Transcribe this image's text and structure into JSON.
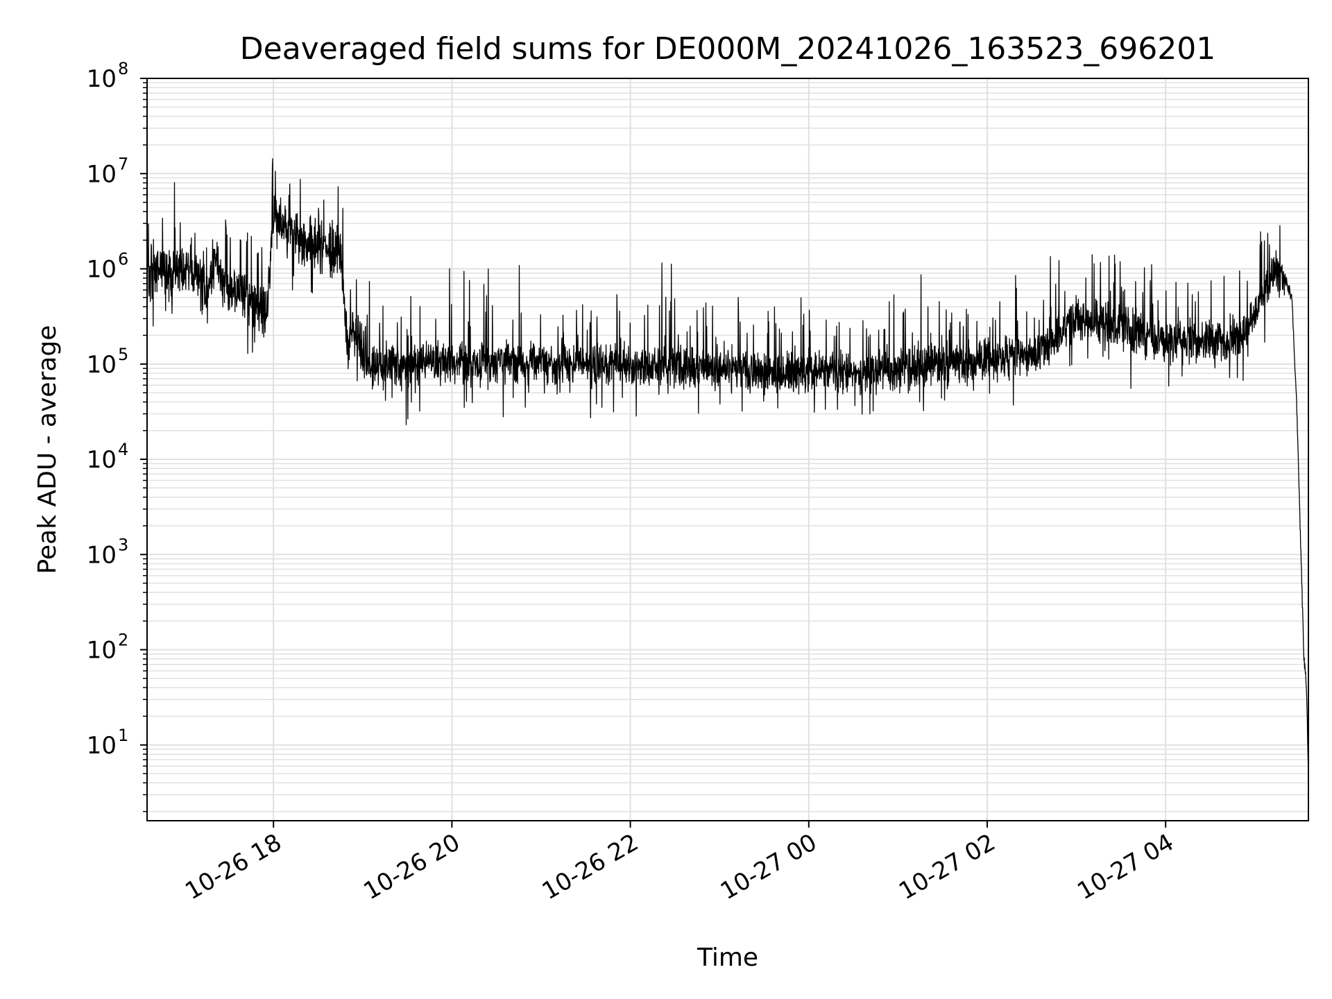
{
  "chart_data": {
    "type": "line",
    "title": "Deaveraged field sums for DE000M_20241026_163523_696201",
    "xlabel": "Time",
    "ylabel": "Peak ADU - average",
    "y_scale": "log",
    "ylim": [
      1.6,
      100000000
    ],
    "xlim": [
      "2024-10-26 16:35",
      "2024-10-27 05:36"
    ],
    "x_ticks": [
      {
        "t": "2024-10-26 18:00",
        "label": "10-26 18"
      },
      {
        "t": "2024-10-26 20:00",
        "label": "10-26 20"
      },
      {
        "t": "2024-10-26 22:00",
        "label": "10-26 22"
      },
      {
        "t": "2024-10-27 00:00",
        "label": "10-27 00"
      },
      {
        "t": "2024-10-27 02:00",
        "label": "10-27 02"
      },
      {
        "t": "2024-10-27 04:00",
        "label": "10-27 04"
      }
    ],
    "y_ticks": [
      {
        "value": 10,
        "base": "10",
        "exp": "1"
      },
      {
        "value": 100,
        "base": "10",
        "exp": "2"
      },
      {
        "value": 1000,
        "base": "10",
        "exp": "3"
      },
      {
        "value": 10000,
        "base": "10",
        "exp": "4"
      },
      {
        "value": 100000,
        "base": "10",
        "exp": "5"
      },
      {
        "value": 1000000,
        "base": "10",
        "exp": "6"
      },
      {
        "value": 10000000,
        "base": "10",
        "exp": "7"
      },
      {
        "value": 100000000,
        "base": "10",
        "exp": "8"
      }
    ],
    "grid": true,
    "line_color": "#000000",
    "grid_color": "#e0e0e0",
    "series": [
      {
        "x": [
          "2024-10-26 16:35",
          "2024-10-26 16:45",
          "2024-10-26 16:55",
          "2024-10-26 17:05",
          "2024-10-26 17:15",
          "2024-10-26 17:20",
          "2024-10-26 17:30",
          "2024-10-26 17:40",
          "2024-10-26 17:50",
          "2024-10-26 17:55",
          "2024-10-26 18:00",
          "2024-10-26 18:05",
          "2024-10-26 18:10",
          "2024-10-26 18:15",
          "2024-10-26 18:20",
          "2024-10-26 18:30",
          "2024-10-26 18:40",
          "2024-10-26 18:45",
          "2024-10-26 18:50",
          "2024-10-26 18:53",
          "2024-10-26 18:55",
          "2024-10-26 19:00",
          "2024-10-26 19:05",
          "2024-10-26 19:15",
          "2024-10-26 19:30",
          "2024-10-26 19:45",
          "2024-10-26 20:00",
          "2024-10-26 20:30",
          "2024-10-26 21:00",
          "2024-10-26 21:30",
          "2024-10-26 22:00",
          "2024-10-26 22:30",
          "2024-10-26 23:00",
          "2024-10-26 23:30",
          "2024-10-27 00:00",
          "2024-10-27 00:30",
          "2024-10-27 01:00",
          "2024-10-27 01:30",
          "2024-10-27 02:00",
          "2024-10-27 02:30",
          "2024-10-27 02:45",
          "2024-10-27 03:00",
          "2024-10-27 03:30",
          "2024-10-27 03:45",
          "2024-10-27 04:00",
          "2024-10-27 04:30",
          "2024-10-27 04:50",
          "2024-10-27 05:00",
          "2024-10-27 05:10",
          "2024-10-27 05:15",
          "2024-10-27 05:20",
          "2024-10-27 05:25",
          "2024-10-27 05:28",
          "2024-10-27 05:31",
          "2024-10-27 05:33",
          "2024-10-27 05:34",
          "2024-10-27 05:35",
          "2024-10-27 05:36"
        ],
        "values": [
          900000,
          1000000,
          850000,
          1100000,
          500000,
          1200000,
          600000,
          550000,
          400000,
          300000,
          3000000,
          2500000,
          2500000,
          2200000,
          1800000,
          1700000,
          1400000,
          1700000,
          130000,
          300000,
          200000,
          150000,
          90000,
          100000,
          90000,
          110000,
          100000,
          100000,
          100000,
          100000,
          100000,
          95000,
          90000,
          80000,
          85000,
          80000,
          85000,
          100000,
          110000,
          120000,
          180000,
          300000,
          250000,
          200000,
          170000,
          170000,
          190000,
          350000,
          800000,
          900000,
          800000,
          500000,
          40000,
          1000,
          80,
          60,
          30,
          4
        ]
      }
    ]
  }
}
